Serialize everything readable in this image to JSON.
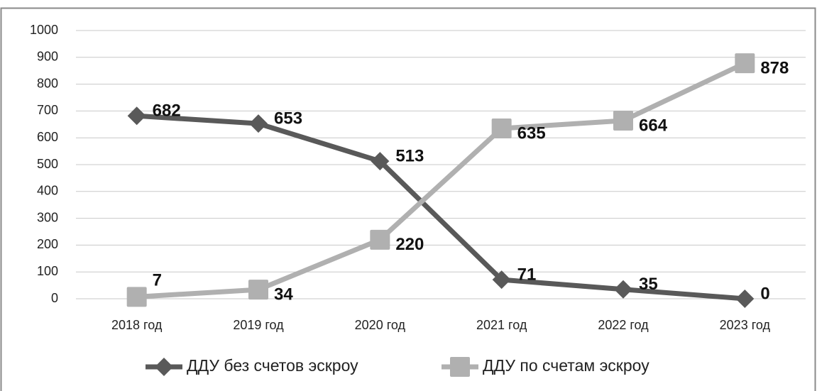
{
  "chart_data": {
    "type": "line",
    "categories": [
      "2018 год",
      "2019 год",
      "2020 год",
      "2021 год",
      "2022 год",
      "2023 год"
    ],
    "series": [
      {
        "name": "ДДУ без счетов эскроу",
        "color": "#595959",
        "marker": "diamond",
        "values": [
          682,
          653,
          513,
          71,
          35,
          0
        ]
      },
      {
        "name": "ДДУ по счетам эскроу",
        "color": "#b0b0b0",
        "marker": "square",
        "values": [
          7,
          34,
          220,
          635,
          664,
          878
        ]
      }
    ],
    "ylim": [
      0,
      1000
    ],
    "yticks": [
      0,
      100,
      200,
      300,
      400,
      500,
      600,
      700,
      800,
      900,
      1000
    ],
    "grid": true,
    "legend": "bottom"
  }
}
